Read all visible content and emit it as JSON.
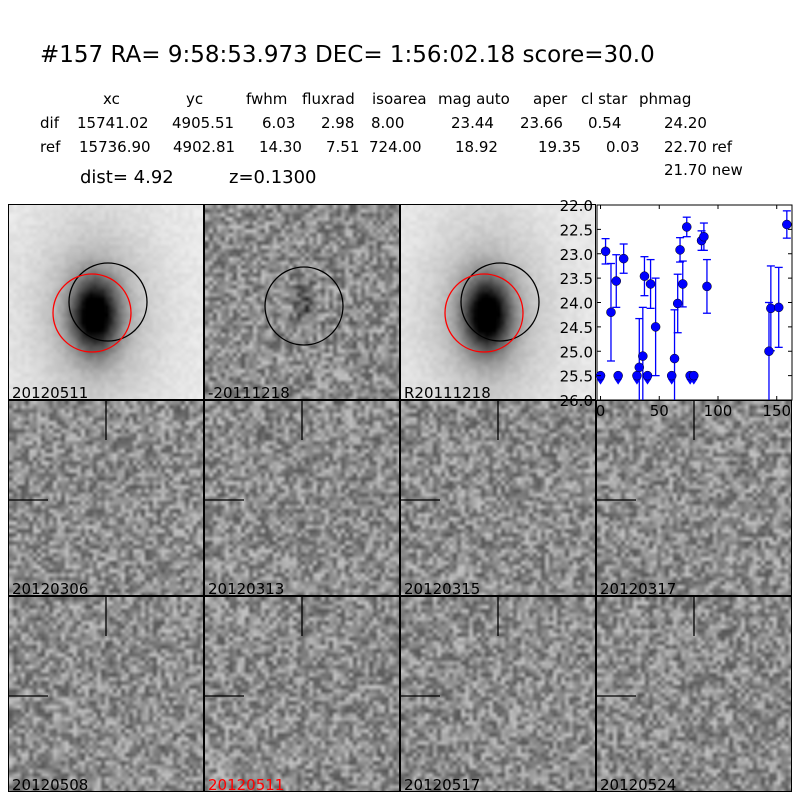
{
  "title": "#157   RA= 9:58:53.973 DEC= 1:56:02.18      score=30.0",
  "table": {
    "headers": [
      "xc",
      "yc",
      "fwhm",
      "fluxrad",
      "isoarea",
      "mag auto",
      "aper",
      "cl star",
      "phmag"
    ],
    "rows": [
      {
        "label": "dif",
        "values": [
          "15741.02",
          "4905.51",
          "6.03",
          "2.98",
          "8.00",
          "23.44",
          "23.66",
          "0.54",
          "24.20"
        ]
      },
      {
        "label": "ref",
        "values": [
          "15736.90",
          "4902.81",
          "14.30",
          "7.51",
          "724.00",
          "18.92",
          "19.35",
          "0.03",
          "22.70 ref"
        ]
      }
    ],
    "extra_phmag": "21.70 new"
  },
  "dist_line": "dist=  4.92",
  "z_line": "z=0.1300",
  "panels": [
    {
      "label": "20120511",
      "kind": "galaxy",
      "label_color": "#000000"
    },
    {
      "label": "-20111218",
      "kind": "diff",
      "label_color": "#000000"
    },
    {
      "label": "R20111218",
      "kind": "galaxy",
      "label_color": "#000000"
    },
    {
      "label": "20120306",
      "kind": "noise",
      "label_color": "#000000"
    },
    {
      "label": "20120313",
      "kind": "noise",
      "label_color": "#000000"
    },
    {
      "label": "20120315",
      "kind": "noise",
      "label_color": "#000000"
    },
    {
      "label": "20120317",
      "kind": "noise",
      "label_color": "#000000"
    },
    {
      "label": "20120508",
      "kind": "noise",
      "label_color": "#000000"
    },
    {
      "label": "20120511",
      "kind": "noise",
      "label_color": "#ff0000"
    },
    {
      "label": "20120517",
      "kind": "noise",
      "label_color": "#000000"
    },
    {
      "label": "20120524",
      "kind": "noise",
      "label_color": "#000000"
    }
  ],
  "chart_data": {
    "type": "scatter",
    "xlim": [
      -3,
      163
    ],
    "ylim": [
      26.0,
      22.0
    ],
    "y_inverted": true,
    "xticks": [
      0,
      50,
      100,
      150
    ],
    "yticks": [
      "22.0",
      "22.5",
      "23.0",
      "23.5",
      "24.0",
      "24.5",
      "25.0",
      "25.5",
      "26.0"
    ],
    "color": "#0000ff",
    "points": [
      {
        "x": 4.3,
        "y": 22.95,
        "err": 0.26
      },
      {
        "x": 8.9,
        "y": 24.2,
        "err": 1.0
      },
      {
        "x": 13.4,
        "y": 23.56,
        "err": 0.54
      },
      {
        "x": 19.7,
        "y": 23.1,
        "err": 0.3
      },
      {
        "x": 33,
        "y": 25.33,
        "err": 1.0
      },
      {
        "x": 36,
        "y": 25.1,
        "err": 1.0
      },
      {
        "x": 37.4,
        "y": 23.46,
        "err": 0.4
      },
      {
        "x": 42.6,
        "y": 23.62,
        "err": 0.5
      },
      {
        "x": 46.9,
        "y": 24.5,
        "err": 1.0
      },
      {
        "x": 63,
        "y": 25.15,
        "err": 1.0
      },
      {
        "x": 65.7,
        "y": 24.02,
        "err": 0.6
      },
      {
        "x": 67.7,
        "y": 22.92,
        "err": 0.25
      },
      {
        "x": 70,
        "y": 23.62,
        "err": 0.47
      },
      {
        "x": 73.4,
        "y": 22.45,
        "err": 0.2
      },
      {
        "x": 86,
        "y": 22.73,
        "err": 0.2
      },
      {
        "x": 88,
        "y": 22.65,
        "err": 0.28
      },
      {
        "x": 90.6,
        "y": 23.67,
        "err": 0.55
      },
      {
        "x": 143.4,
        "y": 25.0,
        "err": 1.0
      },
      {
        "x": 145,
        "y": 24.12,
        "err": 0.87
      },
      {
        "x": 151.7,
        "y": 24.1,
        "err": 0.82
      },
      {
        "x": 158.6,
        "y": 22.4,
        "err": 0.28
      }
    ],
    "upper_limits": [
      {
        "x": 0,
        "y": 25.5
      },
      {
        "x": 15,
        "y": 25.5
      },
      {
        "x": 31,
        "y": 25.5
      },
      {
        "x": 40,
        "y": 25.5
      },
      {
        "x": 60.6,
        "y": 25.5
      },
      {
        "x": 76.3,
        "y": 25.5
      },
      {
        "x": 79.4,
        "y": 25.5
      }
    ]
  }
}
